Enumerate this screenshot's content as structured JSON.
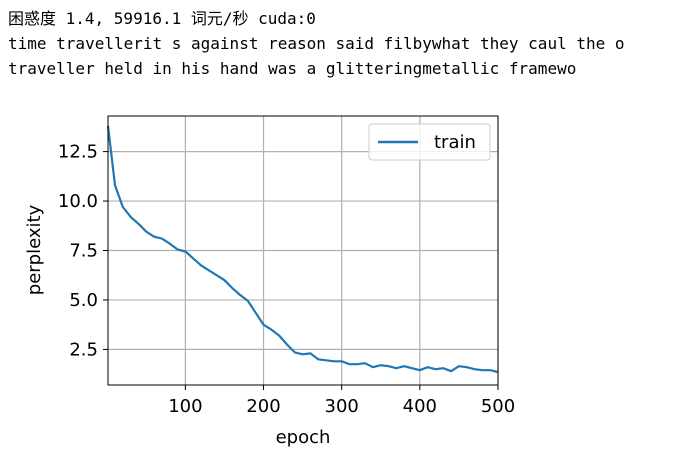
{
  "output": {
    "lines": [
      "困惑度 1.4, 59916.1 词元/秒 cuda:0",
      "time travellerit s against reason said filbywhat they caul the o",
      "traveller held in his hand was a glitteringmetallic framewo"
    ]
  },
  "chart_data": {
    "type": "line",
    "xlabel": "epoch",
    "ylabel": "perplexity",
    "xlim": [
      1,
      500
    ],
    "ylim": [
      0.7,
      14.3
    ],
    "xticks": [
      100,
      200,
      300,
      400,
      500
    ],
    "xtick_labels": [
      "100",
      "200",
      "300",
      "400",
      "500"
    ],
    "yticks": [
      2.5,
      5.0,
      7.5,
      10.0,
      12.5
    ],
    "ytick_labels": [
      "2.5",
      "5.0",
      "7.5",
      "10.0",
      "12.5"
    ],
    "grid": true,
    "legend": {
      "placement": "top-right",
      "entries": [
        "train"
      ]
    },
    "colors": {
      "train": "#1f77b4",
      "grid": "#b0b0b0",
      "axes": "#000000"
    },
    "series": [
      {
        "name": "train",
        "x": [
          1,
          10,
          20,
          30,
          40,
          50,
          60,
          70,
          80,
          90,
          100,
          110,
          120,
          130,
          140,
          150,
          160,
          170,
          180,
          190,
          200,
          210,
          220,
          230,
          240,
          250,
          260,
          270,
          280,
          290,
          300,
          310,
          320,
          330,
          340,
          350,
          360,
          370,
          380,
          390,
          400,
          410,
          420,
          430,
          440,
          450,
          460,
          470,
          480,
          490,
          500
        ],
        "y": [
          13.8,
          10.8,
          9.7,
          9.2,
          8.85,
          8.45,
          8.2,
          8.1,
          7.85,
          7.55,
          7.45,
          7.1,
          6.75,
          6.5,
          6.25,
          6.0,
          5.6,
          5.25,
          4.95,
          4.35,
          3.75,
          3.5,
          3.2,
          2.75,
          2.35,
          2.25,
          2.3,
          2.0,
          1.95,
          1.9,
          1.9,
          1.75,
          1.75,
          1.8,
          1.6,
          1.7,
          1.65,
          1.55,
          1.65,
          1.55,
          1.45,
          1.6,
          1.5,
          1.55,
          1.4,
          1.65,
          1.6,
          1.5,
          1.45,
          1.45,
          1.35
        ]
      }
    ]
  }
}
